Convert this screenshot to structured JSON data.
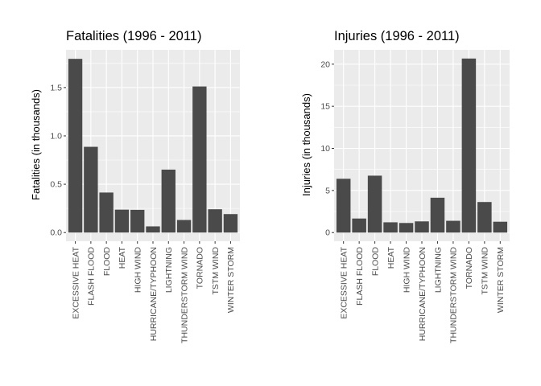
{
  "chart_data": [
    {
      "type": "bar",
      "title": "Fatalities (1996 - 2011)",
      "xlabel": "",
      "ylabel": "Fatalities (in thousands)",
      "categories": [
        "EXCESSIVE HEAT",
        "FLASH FLOOD",
        "FLOOD",
        "HEAT",
        "HIGH WIND",
        "HURRICANE/TYPHOON",
        "LIGHTNING",
        "THUNDERSTORM WIND",
        "TORNADO",
        "TSTM WIND",
        "WINTER STORM"
      ],
      "values": [
        1.797,
        0.887,
        0.414,
        0.237,
        0.235,
        0.064,
        0.651,
        0.13,
        1.511,
        0.241,
        0.191
      ],
      "ylim": [
        -0.09,
        1.89
      ],
      "yticks": [
        0.0,
        0.5,
        1.0,
        1.5
      ],
      "ytick_labels": [
        "0.0",
        "0.5",
        "1.0",
        "1.5"
      ],
      "grid": true,
      "bar_color": "#4a4a4a",
      "panel_color": "#ebebeb",
      "grid_color": "#ffffff"
    },
    {
      "type": "bar",
      "title": "Injuries (1996 - 2011)",
      "xlabel": "",
      "ylabel": "Injuries (in thousands)",
      "categories": [
        "EXCESSIVE HEAT",
        "FLASH FLOOD",
        "FLOOD",
        "HEAT",
        "HIGH WIND",
        "HURRICANE/TYPHOON",
        "LIGHTNING",
        "THUNDERSTORM WIND",
        "TORNADO",
        "TSTM WIND",
        "WINTER STORM"
      ],
      "values": [
        6.39,
        1.67,
        6.76,
        1.22,
        1.14,
        1.33,
        4.14,
        1.4,
        20.67,
        3.63,
        1.29
      ],
      "ylim": [
        -1.03,
        21.7
      ],
      "yticks": [
        0,
        5,
        10,
        15,
        20
      ],
      "ytick_labels": [
        "0",
        "5",
        "10",
        "15",
        "20"
      ],
      "grid": true,
      "bar_color": "#4a4a4a",
      "panel_color": "#ebebeb",
      "grid_color": "#ffffff"
    }
  ]
}
